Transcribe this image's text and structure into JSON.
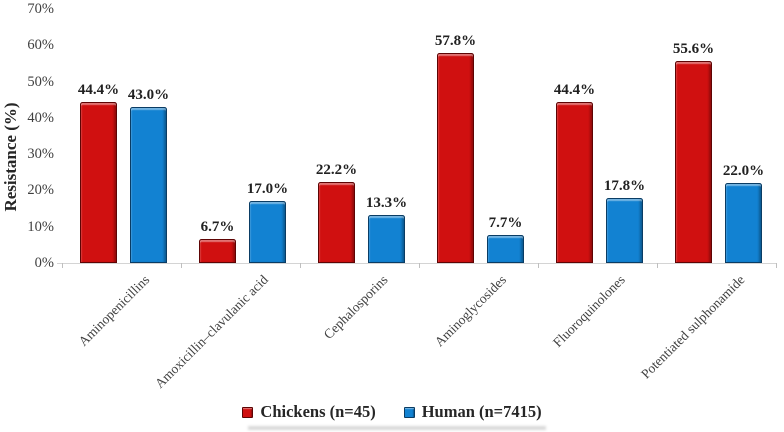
{
  "chart_data": {
    "type": "bar",
    "title": "",
    "ylabel": "Resistance (%)",
    "xlabel": "",
    "categories": [
      "Aminopenicillins",
      "Amoxicillin–clavulanic acid",
      "Cephalosporins",
      "Aminoglycosides",
      "Fluoroquinolones",
      "Potentiated sulphonamide"
    ],
    "series": [
      {
        "name": "Chickens (n=45)",
        "color": "#D01010",
        "border_color": "#5E0404",
        "values": [
          44.4,
          6.7,
          22.2,
          57.8,
          44.4,
          55.6
        ],
        "value_labels": [
          "44.4%",
          "6.7%",
          "22.2%",
          "57.8%",
          "44.4%",
          "55.6%"
        ]
      },
      {
        "name": "Human (n=7415)",
        "color": "#1282D2",
        "border_color": "#0A3C64",
        "values": [
          43.0,
          17.0,
          13.3,
          7.7,
          17.8,
          22.0
        ],
        "value_labels": [
          "43.0%",
          "17.0%",
          "13.3%",
          "7.7%",
          "17.8%",
          "22.0%"
        ]
      }
    ],
    "y_ticks": [
      "0%",
      "10%",
      "20%",
      "30%",
      "40%",
      "50%",
      "60%",
      "70%"
    ],
    "y_tick_values": [
      0,
      10,
      20,
      30,
      40,
      50,
      60,
      70
    ],
    "ylim": [
      0,
      70
    ],
    "grid": false,
    "legend_position": "bottom",
    "colors": {
      "axis_line": "#D4D4D4",
      "tick_mark": "#BFBFBF",
      "tick_text": "#3F3F3F",
      "value_label_text": "#212121",
      "legend_text": "#262626"
    }
  }
}
